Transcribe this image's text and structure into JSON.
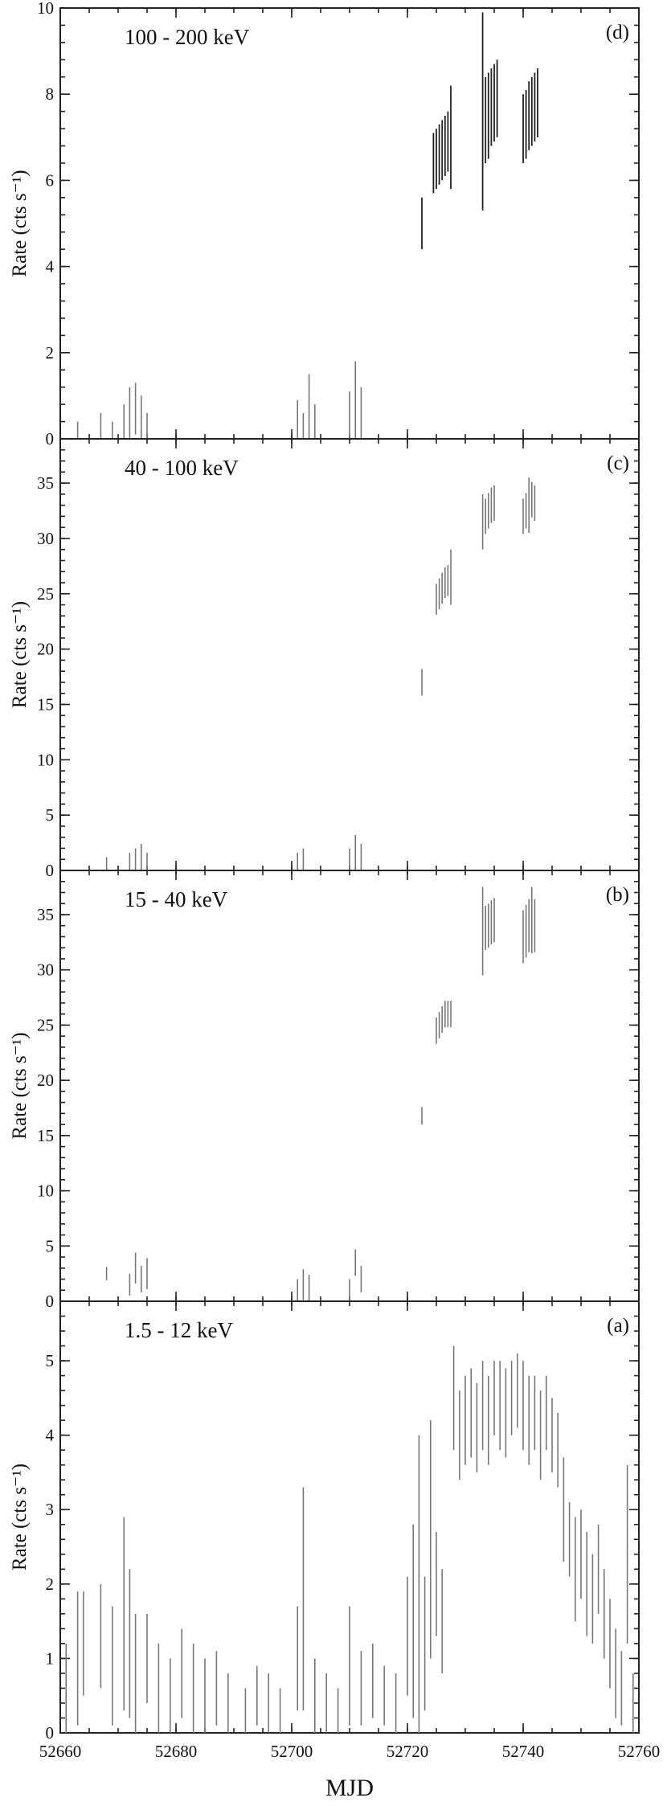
{
  "figure": {
    "shared_x": {
      "label": "MJD",
      "range": [
        52660,
        52760
      ],
      "ticks": [
        52660,
        52680,
        52700,
        52720,
        52740,
        52760
      ],
      "tick_labels": [
        "52660",
        "52680",
        "52700",
        "52720",
        "52740",
        "52760"
      ]
    }
  },
  "chart_data": [
    {
      "type": "scatter",
      "panel_tag": "(d)",
      "energy_band": "100 - 200 keV",
      "ylabel": "Rate (cts s⁻¹)",
      "ylim": [
        0,
        10
      ],
      "yticks": [
        0,
        2,
        4,
        6,
        8,
        10
      ],
      "ytick_labels": [
        "0",
        "2",
        "4",
        "6",
        "8",
        "10"
      ],
      "series": [
        {
          "x": [
            52663,
            52667,
            52669,
            52671,
            52672,
            52673,
            52674,
            52675,
            52701,
            52702,
            52703,
            52704,
            52710,
            52711,
            52712,
            52722.5,
            52724.5,
            52725.0,
            52725.5,
            52726.0,
            52726.5,
            52727.0,
            52727.5,
            52733.0,
            52733.5,
            52734.0,
            52734.5,
            52735.0,
            52735.5,
            52740.0,
            52740.5,
            52741.0,
            52741.5,
            52742.0,
            52742.5
          ],
          "y": [
            0.2,
            0.3,
            0.2,
            0.4,
            0.6,
            0.7,
            0.5,
            0.3,
            0.4,
            0.3,
            0.6,
            0.4,
            0.5,
            0.7,
            0.6,
            5.0,
            6.4,
            6.5,
            6.6,
            6.7,
            6.8,
            6.9,
            7.0,
            7.6,
            7.4,
            7.5,
            7.7,
            7.8,
            7.9,
            7.2,
            7.3,
            7.5,
            7.6,
            7.7,
            7.8
          ],
          "err": [
            0.2,
            0.3,
            0.2,
            0.4,
            0.6,
            0.6,
            0.5,
            0.3,
            0.5,
            0.3,
            0.9,
            0.4,
            0.6,
            1.1,
            0.6,
            0.6,
            0.7,
            0.7,
            0.7,
            0.7,
            0.7,
            0.7,
            1.2,
            2.3,
            1.0,
            1.0,
            0.9,
            0.9,
            0.9,
            0.8,
            0.8,
            0.8,
            0.8,
            0.8,
            0.8
          ]
        }
      ]
    },
    {
      "type": "scatter",
      "panel_tag": "(c)",
      "energy_band": "40 - 100 keV",
      "ylabel": "Rate (cts s⁻¹)",
      "ylim": [
        0,
        39
      ],
      "yticks": [
        0,
        5,
        10,
        15,
        20,
        25,
        30,
        35
      ],
      "ytick_labels": [
        "0",
        "5",
        "10",
        "15",
        "20",
        "25",
        "30",
        "35"
      ],
      "series": [
        {
          "x": [
            52668,
            52672,
            52673,
            52674,
            52675,
            52701,
            52702,
            52710,
            52711,
            52712,
            52722.5,
            52725.0,
            52725.5,
            52726.0,
            52726.5,
            52727.0,
            52727.5,
            52733.0,
            52733.5,
            52734.0,
            52734.5,
            52735.0,
            52740.0,
            52740.5,
            52741.0,
            52741.5,
            52742.0
          ],
          "y": [
            0.6,
            0.8,
            1.0,
            1.2,
            0.8,
            0.8,
            1.0,
            1.0,
            1.6,
            1.2,
            17.0,
            24.5,
            25.0,
            25.5,
            26.0,
            26.2,
            26.5,
            31.5,
            32.0,
            32.5,
            33.0,
            33.2,
            32.0,
            32.5,
            33.0,
            33.5,
            33.2
          ],
          "err": [
            0.6,
            0.8,
            1.0,
            1.2,
            0.8,
            0.8,
            1.0,
            1.0,
            1.6,
            1.2,
            1.2,
            1.4,
            1.4,
            1.4,
            1.4,
            1.4,
            2.5,
            2.5,
            1.6,
            1.6,
            1.6,
            1.6,
            1.6,
            1.6,
            2.5,
            1.6,
            1.6
          ]
        }
      ]
    },
    {
      "type": "scatter",
      "panel_tag": "(b)",
      "energy_band": "15 - 40 keV",
      "ylabel": "Rate (cts s⁻¹)",
      "ylim": [
        0,
        39
      ],
      "yticks": [
        0,
        5,
        10,
        15,
        20,
        25,
        30,
        35
      ],
      "ytick_labels": [
        "0",
        "5",
        "10",
        "15",
        "20",
        "25",
        "30",
        "35"
      ],
      "series": [
        {
          "x": [
            52668,
            52672,
            52673,
            52674,
            52675,
            52701,
            52702,
            52703,
            52710,
            52711,
            52712,
            52722.5,
            52725.0,
            52725.5,
            52726.0,
            52726.5,
            52727.0,
            52727.5,
            52733.0,
            52733.5,
            52734.0,
            52734.5,
            52735.0,
            52740.0,
            52740.5,
            52741.0,
            52741.5,
            52742.0
          ],
          "y": [
            2.5,
            1.5,
            3.0,
            2.0,
            2.5,
            1.0,
            1.5,
            1.2,
            1.0,
            3.5,
            2.0,
            16.8,
            24.5,
            25.0,
            25.5,
            26.0,
            26.0,
            26.0,
            33.5,
            33.8,
            34.0,
            34.3,
            34.5,
            33.0,
            33.5,
            34.0,
            34.5,
            34.0
          ],
          "err": [
            0.6,
            1.0,
            1.4,
            1.2,
            1.4,
            1.0,
            1.4,
            1.2,
            1.0,
            1.2,
            1.2,
            0.8,
            1.2,
            1.2,
            1.2,
            1.2,
            1.2,
            1.2,
            4.0,
            2.0,
            2.0,
            2.0,
            2.0,
            2.4,
            2.4,
            2.4,
            3.0,
            2.4
          ]
        }
      ]
    },
    {
      "type": "scatter",
      "panel_tag": "(a)",
      "energy_band": "1.5 - 12 keV",
      "ylabel": "Rate (cts s⁻¹)",
      "ylim": [
        0,
        5.8
      ],
      "yticks": [
        0,
        1,
        2,
        3,
        4,
        5
      ],
      "ytick_labels": [
        "0",
        "1",
        "2",
        "3",
        "4",
        "5"
      ],
      "series": [
        {
          "x": [
            52661,
            52663,
            52664,
            52667,
            52669,
            52671,
            52672,
            52673,
            52675,
            52677,
            52679,
            52681,
            52683,
            52685,
            52687,
            52689,
            52692,
            52694,
            52696,
            52698,
            52701,
            52702,
            52704,
            52706,
            52708,
            52710,
            52712,
            52714,
            52716,
            52718,
            52720,
            52721,
            52722,
            52723,
            52724,
            52725,
            52726,
            52728,
            52729,
            52730,
            52731,
            52732,
            52733,
            52734,
            52735,
            52736,
            52737,
            52738,
            52739,
            52740,
            52741,
            52742,
            52743,
            52744,
            52745,
            52746,
            52747,
            52748,
            52749,
            52750,
            52751,
            52752,
            52753,
            52754,
            52755,
            52756,
            52757,
            52758,
            52759
          ],
          "y": [
            0.6,
            1.0,
            1.2,
            1.3,
            0.9,
            1.6,
            1.2,
            0.8,
            1.0,
            0.6,
            0.5,
            0.8,
            0.6,
            0.5,
            0.6,
            0.4,
            0.3,
            0.5,
            0.4,
            0.3,
            1.0,
            1.8,
            0.5,
            0.4,
            0.3,
            0.9,
            0.6,
            0.7,
            0.5,
            0.4,
            1.3,
            1.5,
            2.0,
            1.2,
            2.6,
            2.0,
            1.5,
            4.5,
            4.0,
            4.2,
            4.3,
            4.1,
            4.4,
            4.2,
            4.5,
            4.4,
            4.3,
            4.5,
            4.6,
            4.4,
            4.2,
            4.3,
            4.0,
            4.3,
            4.0,
            3.8,
            3.0,
            2.6,
            2.2,
            2.4,
            2.0,
            1.8,
            2.2,
            1.6,
            1.2,
            0.8,
            0.6,
            2.4,
            0.4
          ],
          "err": [
            0.6,
            0.9,
            0.7,
            0.7,
            0.8,
            1.3,
            1.0,
            0.8,
            0.6,
            0.6,
            0.5,
            0.6,
            0.6,
            0.5,
            0.5,
            0.4,
            0.3,
            0.4,
            0.4,
            0.3,
            0.7,
            1.5,
            0.5,
            0.4,
            0.3,
            0.8,
            0.5,
            0.5,
            0.4,
            0.4,
            0.8,
            1.3,
            2.0,
            0.9,
            1.6,
            0.7,
            0.7,
            0.7,
            0.6,
            0.6,
            0.6,
            0.6,
            0.6,
            0.6,
            0.5,
            0.6,
            0.6,
            0.5,
            0.5,
            0.6,
            0.6,
            0.5,
            0.6,
            0.5,
            0.5,
            0.5,
            0.7,
            0.5,
            0.7,
            0.6,
            0.7,
            0.6,
            0.6,
            0.6,
            0.6,
            0.6,
            0.5,
            1.2,
            0.4
          ]
        }
      ]
    }
  ]
}
